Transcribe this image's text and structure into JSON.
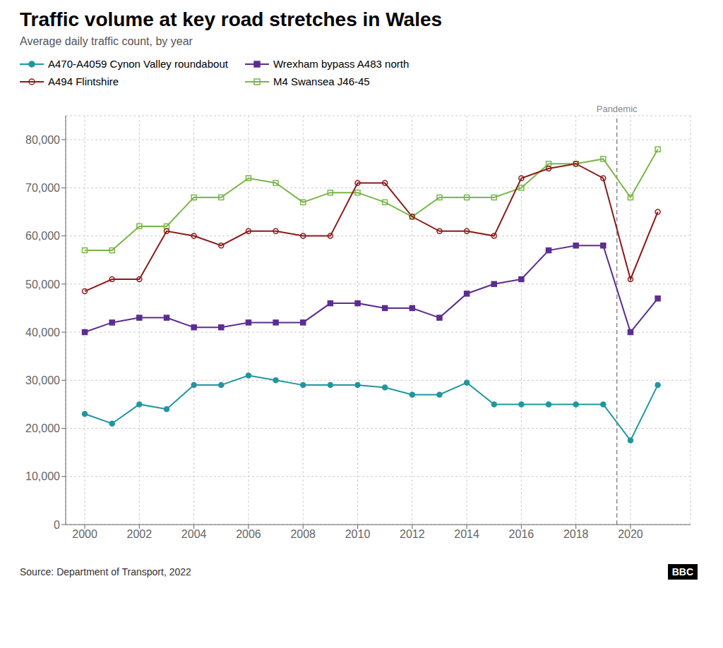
{
  "chart_data": {
    "type": "line",
    "title": "Traffic volume at key road stretches in Wales",
    "subtitle": "Average daily traffic count, by year",
    "source": "Source: Department of Transport, 2022",
    "logo": "BBC",
    "x": [
      2000,
      2001,
      2002,
      2003,
      2004,
      2005,
      2006,
      2007,
      2008,
      2009,
      2010,
      2011,
      2012,
      2013,
      2014,
      2015,
      2016,
      2017,
      2018,
      2019,
      2020,
      2021
    ],
    "series": [
      {
        "name": "A470-A4059 Cynon Valley roundabout",
        "color": "#2196a0",
        "marker": "circle",
        "values": [
          23000,
          21000,
          25000,
          24000,
          29000,
          29000,
          31000,
          30000,
          29000,
          29000,
          29000,
          28500,
          27000,
          27000,
          29500,
          25000,
          25000,
          25000,
          25000,
          25000,
          17500,
          29000
        ]
      },
      {
        "name": "Wrexham bypass A483 north",
        "color": "#5c2d91",
        "marker": "square",
        "values": [
          40000,
          42000,
          43000,
          43000,
          41000,
          41000,
          42000,
          42000,
          42000,
          46000,
          46000,
          45000,
          45000,
          43000,
          48000,
          50000,
          51000,
          57000,
          58000,
          58000,
          40000,
          47000
        ]
      },
      {
        "name": "A494 Flintshire",
        "color": "#8b1a1a",
        "marker": "circle-open",
        "values": [
          48500,
          51000,
          51000,
          61000,
          60000,
          58000,
          61000,
          61000,
          60000,
          60000,
          71000,
          71000,
          64000,
          61000,
          61000,
          60000,
          72000,
          74000,
          75000,
          72000,
          51000,
          65000
        ]
      },
      {
        "name": "M4 Swansea J46-45",
        "color": "#7ab648",
        "marker": "square-open",
        "values": [
          57000,
          57000,
          62000,
          62000,
          68000,
          68000,
          72000,
          71000,
          67000,
          69000,
          69000,
          67000,
          64000,
          68000,
          68000,
          68000,
          70000,
          75000,
          75000,
          76000,
          68000,
          78000
        ]
      }
    ],
    "annotations": [
      {
        "type": "vline",
        "x": 2019.5,
        "label": "Pandemic",
        "color": "#888888",
        "line_style": "dashed"
      }
    ],
    "xlim": [
      1999.3,
      2022.2
    ],
    "xticks": [
      2000,
      2002,
      2004,
      2006,
      2008,
      2010,
      2012,
      2014,
      2016,
      2018,
      2020
    ],
    "ylim": [
      0,
      85000
    ],
    "yticks": [
      0,
      {
        "value": 10000,
        "label": "10,000"
      },
      {
        "value": 20000,
        "label": "20,000"
      },
      {
        "value": 30000,
        "label": "30,000"
      },
      {
        "value": 40000,
        "label": "40,000"
      },
      {
        "value": 50000,
        "label": "50,000"
      },
      {
        "value": 60000,
        "label": "60,000"
      },
      {
        "value": 70000,
        "label": "70,000"
      },
      {
        "value": 80000,
        "label": "80,000"
      }
    ],
    "grid": true
  }
}
